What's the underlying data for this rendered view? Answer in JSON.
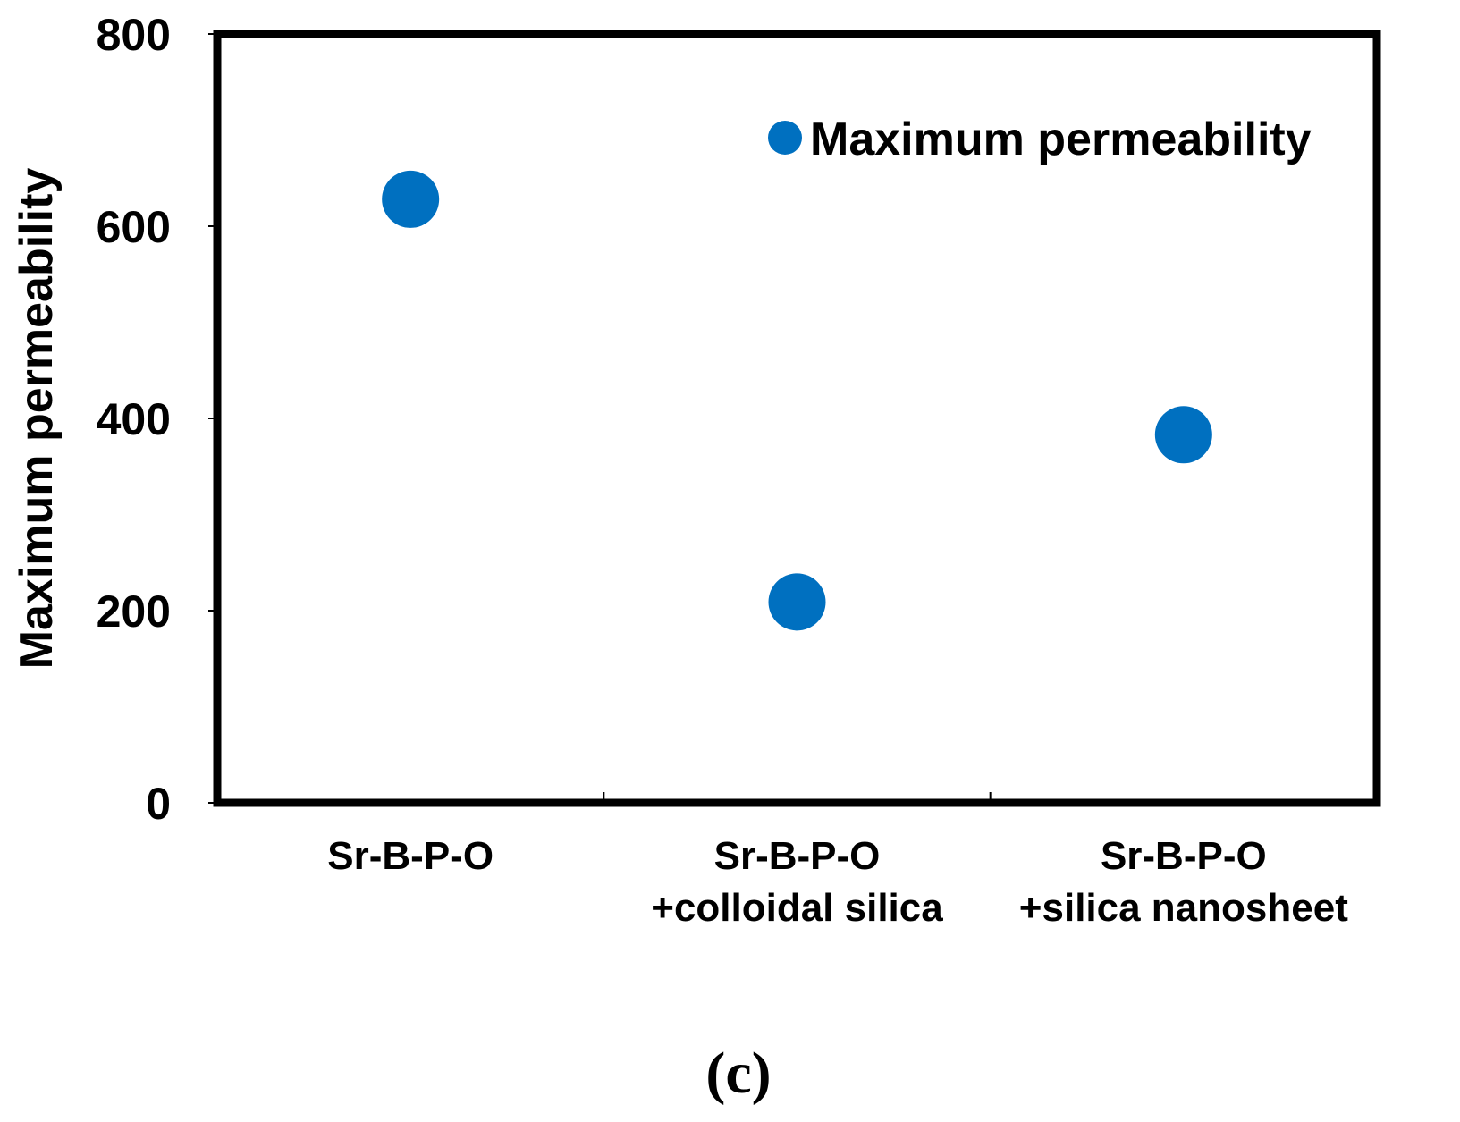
{
  "chart_data": {
    "type": "scatter",
    "title": "",
    "xlabel": "",
    "ylabel": "Maximum permeability",
    "ylim": [
      0,
      800
    ],
    "yticks": [
      0,
      200,
      400,
      600,
      800
    ],
    "grid": false,
    "legend_position": "top-right",
    "categories": [
      [
        "Sr-B-P-O"
      ],
      [
        "Sr-B-P-O",
        "+colloidal silica"
      ],
      [
        "Sr-B-P-O",
        "+silica nanosheet"
      ]
    ],
    "series": [
      {
        "name": "Maximum permeability",
        "color": "#0070C0",
        "marker": "circle",
        "values": [
          628,
          209,
          383
        ]
      }
    ]
  },
  "panel_label": "(c)"
}
